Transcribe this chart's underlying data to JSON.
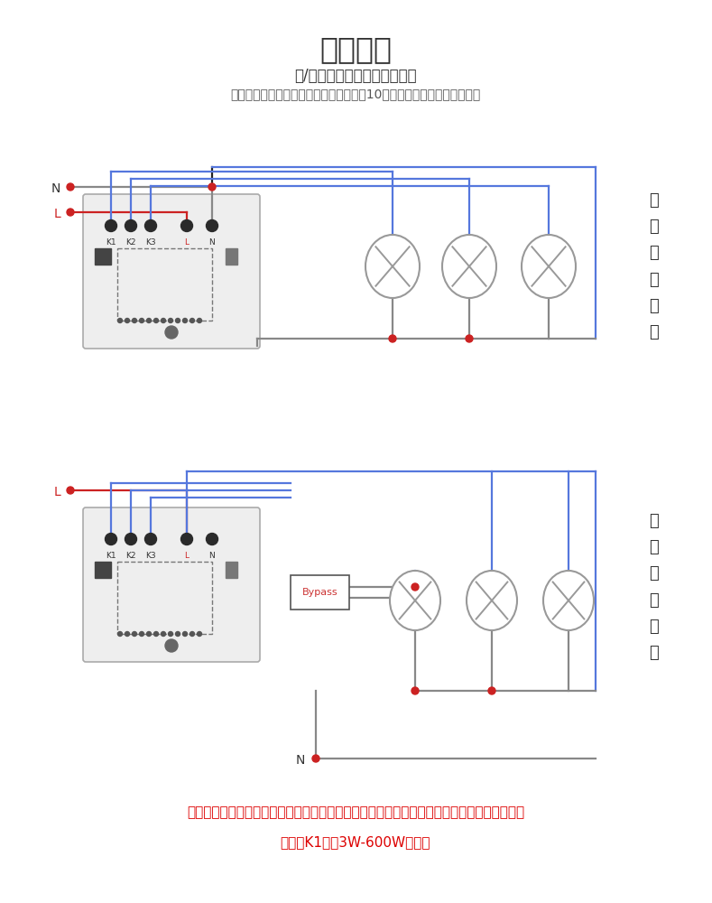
{
  "title": "安装说明",
  "subtitle1": "单/零火线触控开关接线图如下",
  "subtitle2": "（设备首次安装完毕后，触摸面板需等待10秒或重新通电才能正常工作）",
  "diagram1_label": "零\n火\n线\n接\n线\n图",
  "diagram2_label": "单\n火\n线\n接\n线\n图",
  "footer1": "零火线接法没有限制。为了产品工作更稳定，单火线接法请外接本司配套单火线匹配器配件。",
  "footer2": "（建议K1路在3W-600W之间）",
  "bg_color": "#ffffff",
  "wire_blue": "#5577dd",
  "wire_red": "#cc2222",
  "wire_black": "#222222",
  "wire_gray": "#888888",
  "dot_red": "#cc2222",
  "box_fill": "#eeeeee",
  "box_edge": "#aaaaaa",
  "text_dark": "#333333",
  "text_red": "#dd0000"
}
